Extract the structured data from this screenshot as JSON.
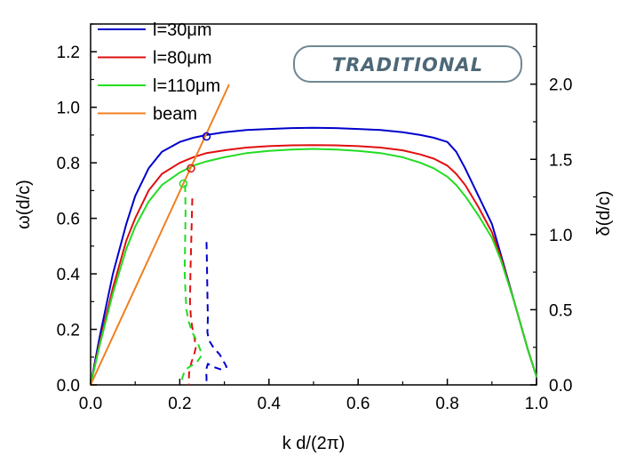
{
  "chart_data": {
    "type": "line",
    "badge": "TRADITIONAL",
    "xlabel": "k d/(2π)",
    "ylabel": "ω(d/c)",
    "y2label": "δ(d/c)",
    "xlim": [
      0,
      1
    ],
    "ylim": [
      0,
      1.3
    ],
    "y2lim": [
      0,
      2.4
    ],
    "xticks": [
      "0.0",
      "0.2",
      "0.4",
      "0.6",
      "0.8",
      "1.0"
    ],
    "yticks": [
      "0.0",
      "0.2",
      "0.4",
      "0.6",
      "0.8",
      "1.0",
      "1.2"
    ],
    "y2ticks": [
      "0.0",
      "0.5",
      "1.0",
      "1.5",
      "2.0"
    ],
    "grid": false,
    "legend_position": "top-left",
    "series": [
      {
        "name": "l=30μm",
        "color": "#0000cc",
        "axis": "left",
        "x": [
          0.0,
          0.02,
          0.05,
          0.08,
          0.1,
          0.13,
          0.16,
          0.2,
          0.23,
          0.26,
          0.3,
          0.35,
          0.4,
          0.45,
          0.5,
          0.55,
          0.6,
          0.65,
          0.7,
          0.74,
          0.77,
          0.8,
          0.82,
          0.84,
          0.87,
          0.9,
          0.92,
          0.95,
          0.98,
          1.0
        ],
        "y": [
          0.0,
          0.17,
          0.4,
          0.58,
          0.68,
          0.78,
          0.84,
          0.875,
          0.89,
          0.9,
          0.91,
          0.918,
          0.922,
          0.925,
          0.926,
          0.925,
          0.922,
          0.918,
          0.91,
          0.9,
          0.89,
          0.875,
          0.84,
          0.78,
          0.68,
          0.58,
          0.47,
          0.3,
          0.13,
          0.03
        ]
      },
      {
        "name": "l=80μm",
        "color": "#e01010",
        "axis": "left",
        "x": [
          0.0,
          0.02,
          0.05,
          0.08,
          0.1,
          0.13,
          0.16,
          0.2,
          0.23,
          0.26,
          0.3,
          0.35,
          0.4,
          0.45,
          0.5,
          0.55,
          0.6,
          0.65,
          0.7,
          0.74,
          0.77,
          0.8,
          0.82,
          0.84,
          0.87,
          0.9,
          0.92,
          0.95,
          0.98,
          1.0
        ],
        "y": [
          0.0,
          0.15,
          0.35,
          0.52,
          0.6,
          0.7,
          0.76,
          0.8,
          0.82,
          0.835,
          0.845,
          0.855,
          0.86,
          0.863,
          0.864,
          0.863,
          0.86,
          0.855,
          0.845,
          0.83,
          0.815,
          0.79,
          0.76,
          0.72,
          0.64,
          0.55,
          0.46,
          0.3,
          0.13,
          0.03
        ]
      },
      {
        "name": "l=110μm",
        "color": "#22dd22",
        "axis": "left",
        "x": [
          0.0,
          0.02,
          0.05,
          0.08,
          0.1,
          0.13,
          0.16,
          0.2,
          0.23,
          0.26,
          0.3,
          0.35,
          0.4,
          0.45,
          0.5,
          0.55,
          0.6,
          0.65,
          0.7,
          0.74,
          0.77,
          0.8,
          0.82,
          0.84,
          0.87,
          0.9,
          0.92,
          0.95,
          0.98,
          1.0
        ],
        "y": [
          0.0,
          0.14,
          0.33,
          0.49,
          0.57,
          0.66,
          0.72,
          0.765,
          0.79,
          0.805,
          0.82,
          0.835,
          0.843,
          0.848,
          0.85,
          0.848,
          0.843,
          0.835,
          0.82,
          0.8,
          0.78,
          0.75,
          0.72,
          0.68,
          0.61,
          0.53,
          0.45,
          0.3,
          0.13,
          0.03
        ]
      },
      {
        "name": "beam",
        "color": "#f08020",
        "axis": "left",
        "x": [
          0.0,
          0.31
        ],
        "y": [
          0.0,
          1.08
        ]
      },
      {
        "color": "#0000cc",
        "axis": "right",
        "dashed": true,
        "x": [
          0.26,
          0.261,
          0.262,
          0.263,
          0.262,
          0.265,
          0.275,
          0.29,
          0.305,
          0.295,
          0.275,
          0.263,
          0.259,
          0.26,
          0.26
        ],
        "y": [
          0.95,
          0.8,
          0.6,
          0.45,
          0.35,
          0.3,
          0.25,
          0.2,
          0.12,
          0.1,
          0.12,
          0.14,
          0.1,
          0.05,
          0.0
        ]
      },
      {
        "color": "#e01010",
        "axis": "right",
        "dashed": true,
        "x": [
          0.228,
          0.226,
          0.224,
          0.223,
          0.225,
          0.228,
          0.232,
          0.236,
          0.232,
          0.226,
          0.221,
          0.22
        ],
        "y": [
          1.24,
          1.0,
          0.75,
          0.55,
          0.45,
          0.38,
          0.33,
          0.25,
          0.2,
          0.15,
          0.08,
          0.0
        ]
      },
      {
        "color": "#22dd22",
        "axis": "right",
        "dashed": true,
        "x": [
          0.212,
          0.213,
          0.212,
          0.211,
          0.213,
          0.215,
          0.22,
          0.228,
          0.24,
          0.25,
          0.238,
          0.222,
          0.212,
          0.206,
          0.204
        ],
        "y": [
          1.33,
          1.15,
          0.95,
          0.75,
          0.6,
          0.5,
          0.42,
          0.35,
          0.28,
          0.2,
          0.15,
          0.12,
          0.1,
          0.05,
          0.0
        ]
      }
    ],
    "intersections": [
      {
        "series": "l=30μm",
        "x": 0.26,
        "y": 0.895,
        "color": "#0000cc"
      },
      {
        "series": "l=80μm",
        "x": 0.225,
        "y": 0.78,
        "color": "#e01010"
      },
      {
        "series": "l=110μm",
        "x": 0.208,
        "y": 0.725,
        "color": "#22dd22"
      }
    ]
  }
}
